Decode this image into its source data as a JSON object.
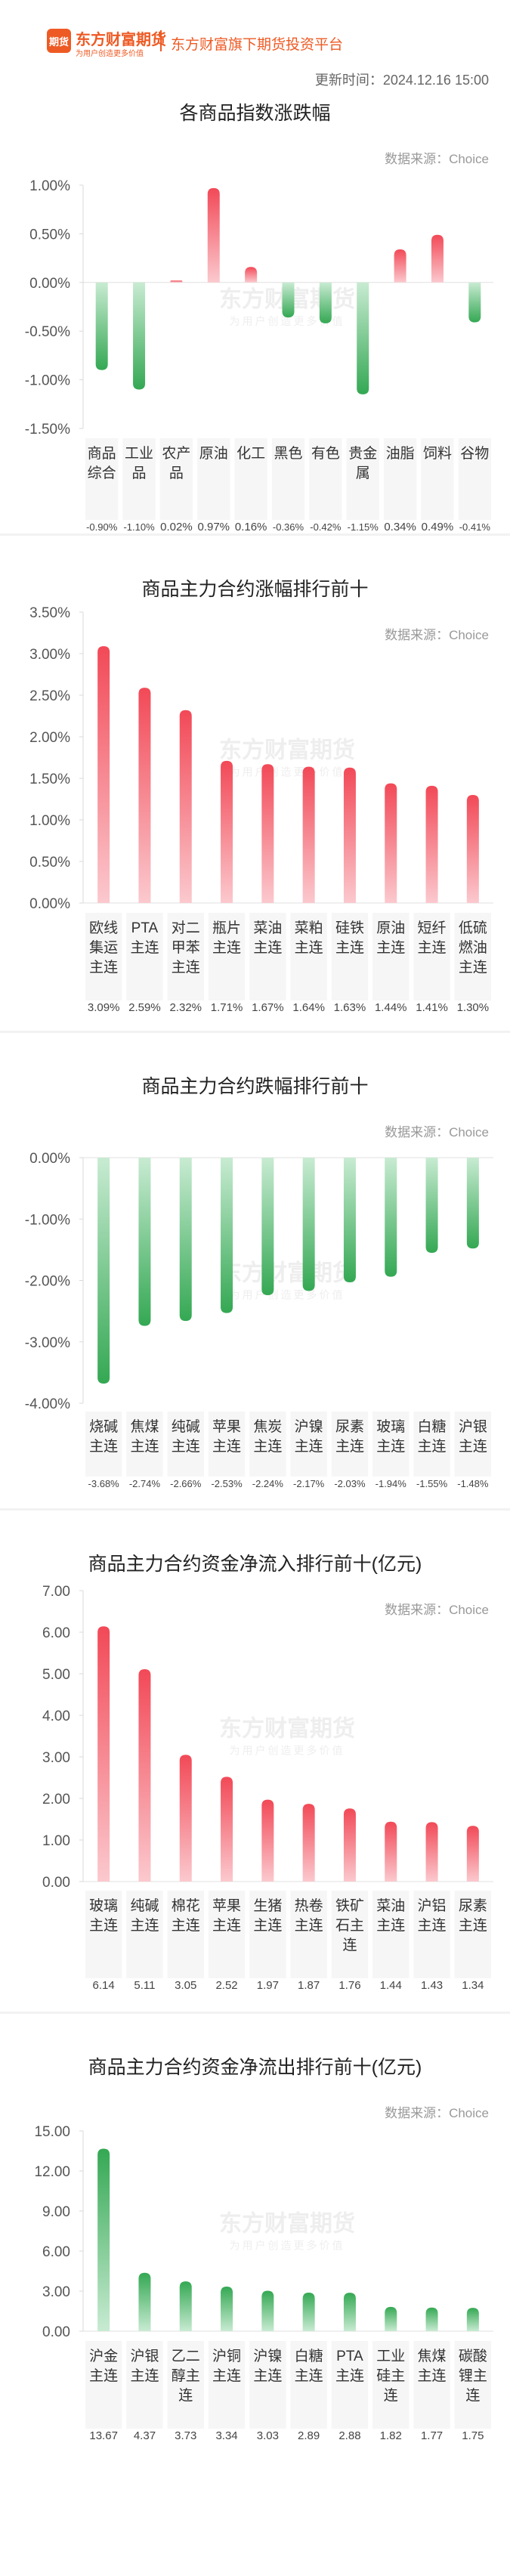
{
  "header": {
    "logo_badge": "期货",
    "logo_name": "东方财富期货",
    "logo_slogan": "为用户创造更多价值",
    "platform": "东方财富旗下期货投资平台",
    "updated": "更新时间：2024.12.16 15:00"
  },
  "watermark": {
    "main": "东方财富期货",
    "sub": "为用户创造更多价值"
  },
  "source_label": "数据来源：Choice",
  "chart_data": [
    {
      "type": "bar",
      "title": "各商品指数涨跌幅",
      "categories": [
        "商品综合",
        "工业品",
        "农产品",
        "原油",
        "化工",
        "黑色",
        "有色",
        "贵金属",
        "油脂",
        "饲料",
        "谷物"
      ],
      "values": [
        -0.9,
        -1.1,
        0.02,
        0.97,
        0.16,
        -0.36,
        -0.42,
        -1.15,
        0.34,
        0.49,
        -0.41
      ],
      "value_labels": [
        "-0.90%",
        "-1.10%",
        "0.02%",
        "0.97%",
        "0.16%",
        "-0.36%",
        "-0.42%",
        "-1.15%",
        "0.34%",
        "0.49%",
        "-0.41%"
      ],
      "ylim": [
        -1.5,
        1.0
      ],
      "yticks": [
        1.0,
        0.5,
        0.0,
        -0.5,
        -1.0,
        -1.5
      ],
      "ytick_labels": [
        "1.00%",
        "0.50%",
        "0.00%",
        "-0.50%",
        "-1.00%",
        "-1.50%"
      ],
      "grid": false,
      "colors": {
        "positive": "#f24957",
        "negative": "#34a853"
      }
    },
    {
      "type": "bar",
      "title": "商品主力合约涨幅排行前十",
      "categories": [
        "欧线集运主连",
        "PTA主连",
        "对二甲苯主连",
        "瓶片主连",
        "菜油主连",
        "菜粕主连",
        "硅铁主连",
        "原油主连",
        "短纤主连",
        "低硫燃油主连"
      ],
      "values": [
        3.09,
        2.59,
        2.32,
        1.71,
        1.67,
        1.64,
        1.63,
        1.44,
        1.41,
        1.3
      ],
      "value_labels": [
        "3.09%",
        "2.59%",
        "2.32%",
        "1.71%",
        "1.67%",
        "1.64%",
        "1.63%",
        "1.44%",
        "1.41%",
        "1.30%"
      ],
      "ylim": [
        0,
        3.5
      ],
      "yticks": [
        3.5,
        3.0,
        2.5,
        2.0,
        1.5,
        1.0,
        0.5,
        0.0
      ],
      "ytick_labels": [
        "3.50%",
        "3.00%",
        "2.50%",
        "2.00%",
        "1.50%",
        "1.00%",
        "0.50%",
        "0.00%"
      ],
      "grid": false,
      "colors": {
        "positive": "#f24957",
        "negative": "#34a853"
      }
    },
    {
      "type": "bar",
      "title": "商品主力合约跌幅排行前十",
      "categories": [
        "烧碱主连",
        "焦煤主连",
        "纯碱主连",
        "苹果主连",
        "焦炭主连",
        "沪镍主连",
        "尿素主连",
        "玻璃主连",
        "白糖主连",
        "沪银主连"
      ],
      "values": [
        -3.68,
        -2.74,
        -2.66,
        -2.53,
        -2.24,
        -2.17,
        -2.03,
        -1.94,
        -1.55,
        -1.48
      ],
      "value_labels": [
        "-3.68%",
        "-2.74%",
        "-2.66%",
        "-2.53%",
        "-2.24%",
        "-2.17%",
        "-2.03%",
        "-1.94%",
        "-1.55%",
        "-1.48%"
      ],
      "ylim": [
        -4.0,
        0.0
      ],
      "yticks": [
        0.0,
        -1.0,
        -2.0,
        -3.0,
        -4.0
      ],
      "ytick_labels": [
        "0.00%",
        "-1.00%",
        "-2.00%",
        "-3.00%",
        "-4.00%"
      ],
      "grid": false,
      "colors": {
        "positive": "#f24957",
        "negative": "#34a853"
      }
    },
    {
      "type": "bar",
      "title": "商品主力合约资金净流入排行前十(亿元)",
      "categories": [
        "玻璃主连",
        "纯碱主连",
        "棉花主连",
        "苹果主连",
        "生猪主连",
        "热卷主连",
        "铁矿石主连",
        "菜油主连",
        "沪铝主连",
        "尿素主连"
      ],
      "values": [
        6.14,
        5.11,
        3.05,
        2.52,
        1.97,
        1.87,
        1.76,
        1.44,
        1.43,
        1.34
      ],
      "value_labels": [
        "6.14",
        "5.11",
        "3.05",
        "2.52",
        "1.97",
        "1.87",
        "1.76",
        "1.44",
        "1.43",
        "1.34"
      ],
      "ylim": [
        0,
        7.0
      ],
      "yticks": [
        7.0,
        6.0,
        5.0,
        4.0,
        3.0,
        2.0,
        1.0,
        0.0
      ],
      "ytick_labels": [
        "7.00",
        "6.00",
        "5.00",
        "4.00",
        "3.00",
        "2.00",
        "1.00",
        "0.00"
      ],
      "grid": false,
      "colors": {
        "positive": "#f24957",
        "negative": "#34a853"
      }
    },
    {
      "type": "bar",
      "title": "商品主力合约资金净流出排行前十(亿元)",
      "categories": [
        "沪金主连",
        "沪银主连",
        "乙二醇主连",
        "沪铜主连",
        "沪镍主连",
        "白糖主连",
        "PTA主连",
        "工业硅主连",
        "焦煤主连",
        "碳酸锂主连"
      ],
      "values": [
        13.67,
        4.37,
        3.73,
        3.34,
        3.03,
        2.89,
        2.88,
        1.82,
        1.77,
        1.75
      ],
      "value_labels": [
        "13.67",
        "4.37",
        "3.73",
        "3.34",
        "3.03",
        "2.89",
        "2.88",
        "1.82",
        "1.77",
        "1.75"
      ],
      "ylim": [
        0,
        15.0
      ],
      "yticks": [
        15.0,
        12.0,
        9.0,
        6.0,
        3.0,
        0.0
      ],
      "ytick_labels": [
        "15.00",
        "12.00",
        "9.00",
        "6.00",
        "3.00",
        "0.00"
      ],
      "grid": false,
      "colors": {
        "positive": "#34a853",
        "negative": "#34a853"
      }
    }
  ]
}
